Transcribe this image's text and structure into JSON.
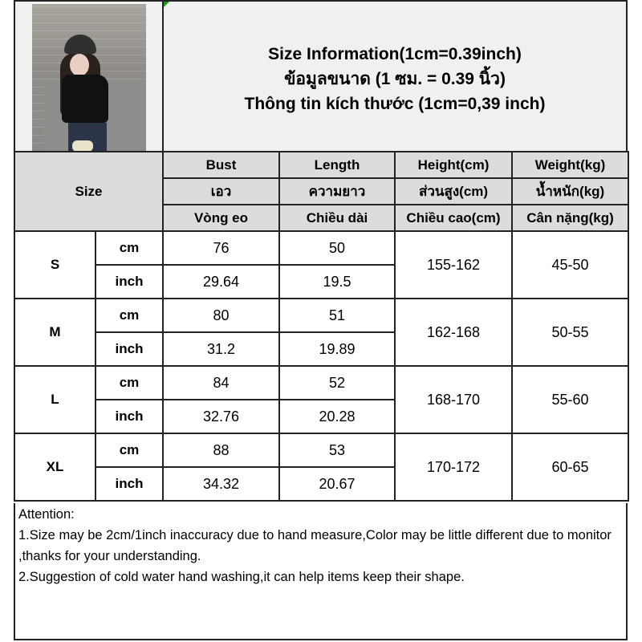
{
  "title_lines": [
    "Size Information(1cm=0.39inch)",
    "ข้อมูลขนาด (1 ซม. = 0.39 นิ้ว)",
    "Thông tin kích thước (1cm=0,39 inch)"
  ],
  "size_header": "Size",
  "columns": [
    {
      "en": "Bust",
      "th": "เอว",
      "vi": "Vòng eo"
    },
    {
      "en": "Length",
      "th": "ความยาว",
      "vi": "Chiều dài"
    },
    {
      "en": "Height(cm)",
      "th": "ส่วนสูง(cm)",
      "vi": "Chiều cao(cm)"
    },
    {
      "en": "Weight(kg)",
      "th": "น้ำหนัก(kg)",
      "vi": "Cân nặng(kg)"
    }
  ],
  "units": {
    "cm": "cm",
    "inch": "inch"
  },
  "rows": [
    {
      "size": "S",
      "bust_cm": "76",
      "length_cm": "50",
      "bust_in": "29.64",
      "length_in": "19.5",
      "height": "155-162",
      "weight": "45-50"
    },
    {
      "size": "M",
      "bust_cm": "80",
      "length_cm": "51",
      "bust_in": "31.2",
      "length_in": "19.89",
      "height": "162-168",
      "weight": "50-55"
    },
    {
      "size": "L",
      "bust_cm": "84",
      "length_cm": "52",
      "bust_in": "32.76",
      "length_in": "20.28",
      "height": "168-170",
      "weight": "55-60"
    },
    {
      "size": "XL",
      "bust_cm": "88",
      "length_cm": "53",
      "bust_in": "34.32",
      "length_in": "20.67",
      "height": "170-172",
      "weight": "60-65"
    }
  ],
  "attention": {
    "heading": "Attention:",
    "note1": "1.Size may be 2cm/1inch inaccuracy due to hand measure,Color may be little different due to monitor ,thanks for your understanding.",
    "note2": "2.Suggestion of cold water hand washing,it can help items keep their shape."
  }
}
